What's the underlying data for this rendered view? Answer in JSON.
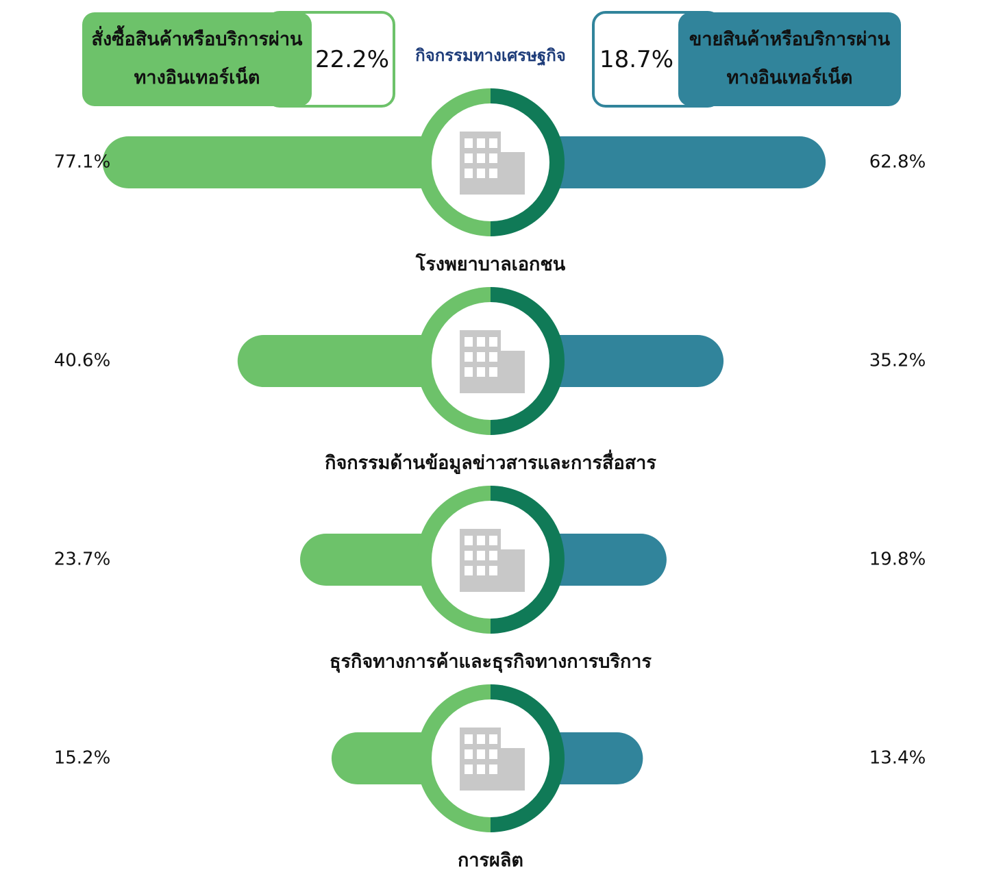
{
  "chart_data": {
    "type": "butterfly",
    "title": "กิจกรรมทางเศรษฐกิจ",
    "categories": [
      "โรงพยาบาลเอกชน",
      "กิจกรรมด้านข้อมูลข่าวสารและการสื่อสาร",
      "ธุรกิจทางการค้าและธุรกิจทางการบริการ",
      "การผลิต"
    ],
    "series": [
      {
        "name": "สั่งซื้อสินค้าหรือบริการผ่านทางอินเทอร์เน็ต",
        "color": "#6dc26a",
        "total": 22.2,
        "total_label": "22.2%",
        "values": [
          77.1,
          40.6,
          23.7,
          15.2
        ],
        "value_labels": [
          "77.1%",
          "40.6%",
          "23.7%",
          "15.2%"
        ]
      },
      {
        "name": "ขายสินค้าหรือบริการผ่านทางอินเทอร์เน็ต",
        "color": "#31849b",
        "total": 18.7,
        "total_label": "18.7%",
        "values": [
          62.8,
          35.2,
          19.8,
          13.4
        ],
        "value_labels": [
          "62.8%",
          "35.2%",
          "19.8%",
          "13.4%"
        ]
      }
    ]
  }
}
